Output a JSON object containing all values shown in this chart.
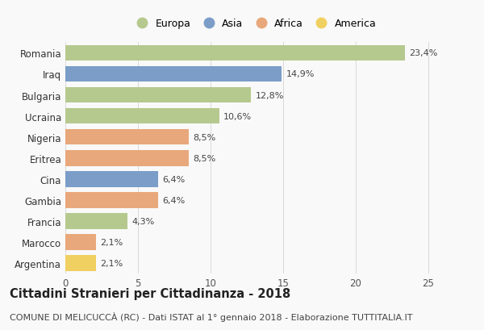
{
  "countries": [
    "Romania",
    "Iraq",
    "Bulgaria",
    "Ucraina",
    "Nigeria",
    "Eritrea",
    "Cina",
    "Gambia",
    "Francia",
    "Marocco",
    "Argentina"
  ],
  "values": [
    23.4,
    14.9,
    12.8,
    10.6,
    8.5,
    8.5,
    6.4,
    6.4,
    4.3,
    2.1,
    2.1
  ],
  "labels": [
    "23,4%",
    "14,9%",
    "12,8%",
    "10,6%",
    "8,5%",
    "8,5%",
    "6,4%",
    "6,4%",
    "4,3%",
    "2,1%",
    "2,1%"
  ],
  "colors": [
    "#b5c98e",
    "#7b9dc8",
    "#b5c98e",
    "#b5c98e",
    "#e8a87c",
    "#e8a87c",
    "#7b9dc8",
    "#e8a87c",
    "#b5c98e",
    "#e8a87c",
    "#f0d060"
  ],
  "legend_labels": [
    "Europa",
    "Asia",
    "Africa",
    "America"
  ],
  "legend_colors": [
    "#b5c98e",
    "#7b9dc8",
    "#e8a87c",
    "#f0d060"
  ],
  "title": "Cittadini Stranieri per Cittadinanza - 2018",
  "subtitle": "COMUNE DI MELICUCCÀ (RC) - Dati ISTAT al 1° gennaio 2018 - Elaborazione TUTTITALIA.IT",
  "xlim": [
    0,
    26
  ],
  "xticks": [
    0,
    5,
    10,
    15,
    20,
    25
  ],
  "background_color": "#f9f9f9",
  "grid_color": "#d8d8d8",
  "bar_height": 0.75,
  "title_fontsize": 10.5,
  "subtitle_fontsize": 8,
  "label_fontsize": 8,
  "tick_fontsize": 8.5,
  "legend_fontsize": 9
}
